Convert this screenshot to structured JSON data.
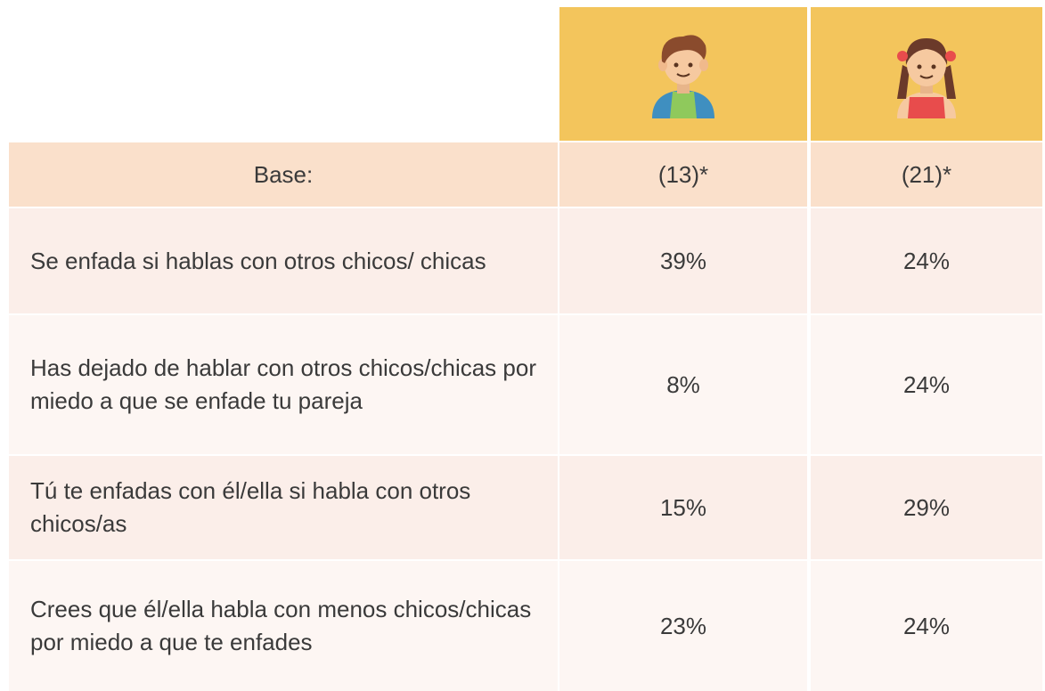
{
  "table": {
    "rows": [
      [
        "Base:",
        "(13)*",
        "(21)*"
      ],
      [
        "Se enfada si hablas con otros chicos/ chicas",
        "39%",
        "24%"
      ],
      [
        "Has dejado de hablar con otros chicos/chicas por miedo a que se enfade tu pareja",
        "8%",
        "24%"
      ],
      [
        "Tú te enfadas con él/ella si habla con otros chicos/as",
        "15%",
        "29%"
      ],
      [
        "Crees que él/ella habla con menos chicos/chicas por miedo a que te enfades",
        "23%",
        "24%"
      ]
    ]
  }
}
